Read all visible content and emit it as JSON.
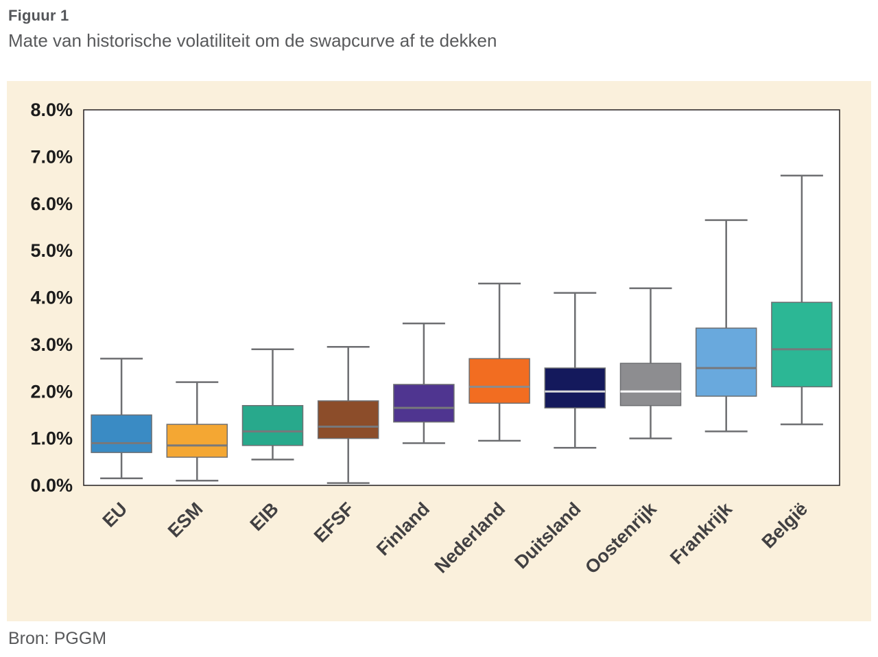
{
  "header": {
    "figure_label": "Figuur 1",
    "title": "Mate van historische volatiliteit om de swapcurve af te dekken"
  },
  "footer": {
    "source": "Bron: PGGM"
  },
  "chart_data": {
    "type": "boxplot",
    "title": "Mate van historische volatiliteit om de swapcurve af te dekken",
    "xlabel": "",
    "ylabel": "",
    "ylim": [
      0,
      8
    ],
    "ytick_labels": [
      "0.0%",
      "1.0%",
      "2.0%",
      "3.0%",
      "4.0%",
      "5.0%",
      "6.0%",
      "7.0%",
      "8.0%"
    ],
    "grid": false,
    "panel_background": "#faf0dc",
    "plot_background": "#ffffff",
    "axis_color": "#231f20",
    "whisker_color": "#6d6e71",
    "categories": [
      "EU",
      "ESM",
      "EIB",
      "EFSF",
      "Finland",
      "Nederland",
      "Duitsland",
      "Oostenrijk",
      "Frankrijk",
      "België"
    ],
    "series": [
      {
        "name": "EU",
        "color": "#3a8bc4",
        "median_color": "#77787b",
        "low": 0.15,
        "q1": 0.7,
        "median": 0.9,
        "q3": 1.5,
        "high": 2.7
      },
      {
        "name": "ESM",
        "color": "#f4a733",
        "median_color": "#77787b",
        "low": 0.1,
        "q1": 0.6,
        "median": 0.85,
        "q3": 1.3,
        "high": 2.2
      },
      {
        "name": "EIB",
        "color": "#28a98c",
        "median_color": "#77787b",
        "low": 0.55,
        "q1": 0.85,
        "median": 1.15,
        "q3": 1.7,
        "high": 2.9
      },
      {
        "name": "EFSF",
        "color": "#8c4d2a",
        "median_color": "#77787b",
        "low": 0.05,
        "q1": 1.0,
        "median": 1.25,
        "q3": 1.8,
        "high": 2.95
      },
      {
        "name": "Finland",
        "color": "#4f3590",
        "median_color": "#77787b",
        "low": 0.9,
        "q1": 1.35,
        "median": 1.65,
        "q3": 2.15,
        "high": 3.45
      },
      {
        "name": "Nederland",
        "color": "#f26d21",
        "median_color": "#8a8c8e",
        "low": 0.95,
        "q1": 1.75,
        "median": 2.1,
        "q3": 2.7,
        "high": 4.3
      },
      {
        "name": "Duitsland",
        "color": "#14195c",
        "median_color": "#d9dadb",
        "low": 0.8,
        "q1": 1.65,
        "median": 2.0,
        "q3": 2.5,
        "high": 4.1
      },
      {
        "name": "Oostenrijk",
        "color": "#8d8d90",
        "median_color": "#ffffff",
        "low": 1.0,
        "q1": 1.7,
        "median": 2.0,
        "q3": 2.6,
        "high": 4.2
      },
      {
        "name": "Frankrijk",
        "color": "#69a9dd",
        "median_color": "#77787b",
        "low": 1.15,
        "q1": 1.9,
        "median": 2.5,
        "q3": 3.35,
        "high": 5.65
      },
      {
        "name": "België",
        "color": "#2cb795",
        "median_color": "#77787b",
        "low": 1.3,
        "q1": 2.1,
        "median": 2.9,
        "q3": 3.9,
        "high": 6.6
      }
    ]
  }
}
